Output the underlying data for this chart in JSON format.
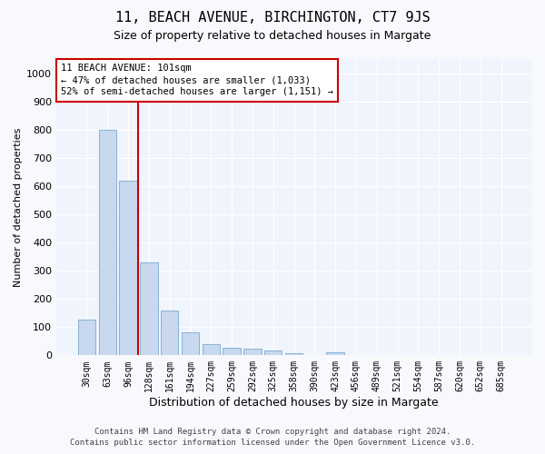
{
  "title": "11, BEACH AVENUE, BIRCHINGTON, CT7 9JS",
  "subtitle": "Size of property relative to detached houses in Margate",
  "xlabel": "Distribution of detached houses by size in Margate",
  "ylabel": "Number of detached properties",
  "bar_values": [
    125,
    800,
    620,
    330,
    160,
    80,
    40,
    28,
    25,
    18,
    8,
    0,
    10,
    0,
    0,
    0,
    0,
    0,
    0,
    0,
    0
  ],
  "bar_labels": [
    "30sqm",
    "63sqm",
    "96sqm",
    "128sqm",
    "161sqm",
    "194sqm",
    "227sqm",
    "259sqm",
    "292sqm",
    "325sqm",
    "358sqm",
    "390sqm",
    "423sqm",
    "456sqm",
    "489sqm",
    "521sqm",
    "554sqm",
    "587sqm",
    "620sqm",
    "652sqm",
    "685sqm"
  ],
  "bar_color": "#c8d8ee",
  "bar_edge_color": "#7aaad0",
  "vline_color": "#cc0000",
  "vline_x": 2.5,
  "annotation_text": "11 BEACH AVENUE: 101sqm\n← 47% of detached houses are smaller (1,033)\n52% of semi-detached houses are larger (1,151) →",
  "annotation_box_edge_color": "#cc0000",
  "annotation_bg_color": "#ffffff",
  "ylim": [
    0,
    1050
  ],
  "yticks": [
    0,
    100,
    200,
    300,
    400,
    500,
    600,
    700,
    800,
    900,
    1000
  ],
  "footer_line1": "Contains HM Land Registry data © Crown copyright and database right 2024.",
  "footer_line2": "Contains public sector information licensed under the Open Government Licence v3.0.",
  "plot_bg_color": "#f0f4fc",
  "fig_bg_color": "#f8f9fd",
  "grid_color": "#ffffff",
  "title_fontsize": 11,
  "subtitle_fontsize": 9,
  "ylabel_fontsize": 8,
  "xlabel_fontsize": 9,
  "tick_fontsize": 7,
  "annotation_fontsize": 7.5,
  "footer_fontsize": 6.5
}
